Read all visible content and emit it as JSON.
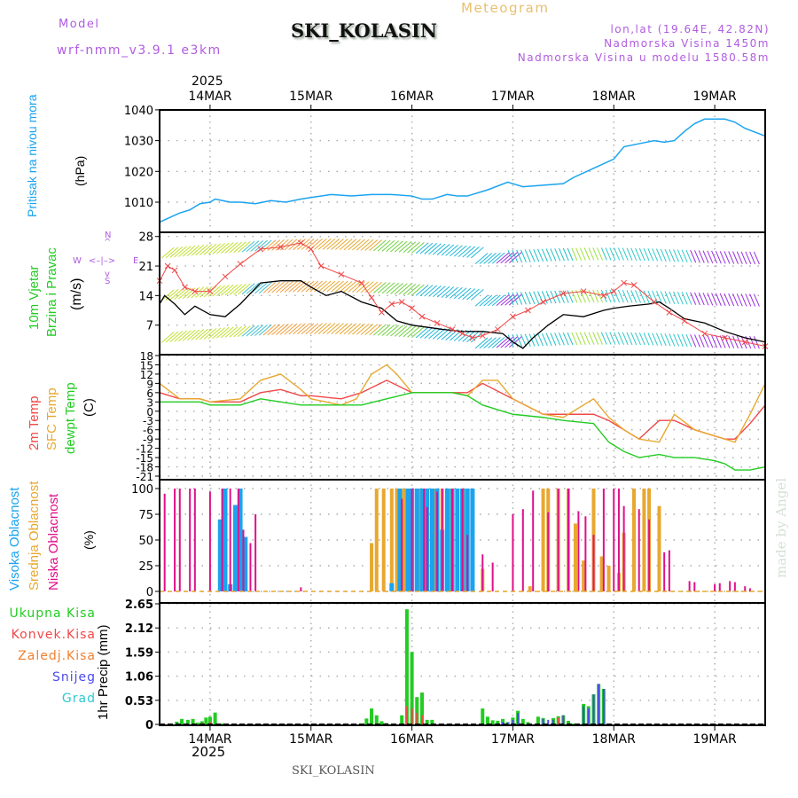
{
  "header": {
    "model_label": "Model",
    "model_value": "wrf-nmm_v3.9.1  e3km",
    "station_title": "SKI_KOLASIN",
    "chart_type": "Meteogram",
    "coords": "lon,lat (19.64E, 42.82N)",
    "elevation": "Nadmorska Visina 1450m",
    "model_elevation": "Nadmorska Visina u modelu 1580.58m",
    "year_top": "2025",
    "year_bottom": "2025",
    "colors": {
      "meta_text": "#b05ce0",
      "meteogram_label": "#e8c070"
    }
  },
  "footer": {
    "station": "SKI_KOLASIN",
    "watermark": "made by Angel"
  },
  "axis_days": [
    "14MAR",
    "15MAR",
    "16MAR",
    "17MAR",
    "18MAR",
    "19MAR"
  ],
  "panels": {
    "pressure": {
      "label": "Pritisak na nivou mora",
      "unit": "(hPa)",
      "color": "#1aa3ef"
    },
    "wind": {
      "label1": "10m Vjetar",
      "label2": "Brzina i Pravac",
      "unit": "(m/s)",
      "compass": {
        "n": "N",
        "s": "S",
        "e": "E",
        "w": "W"
      },
      "color": "#22cc22",
      "compass_color": "#b05ce0"
    },
    "temp": {
      "label_2m": "2m Temp",
      "label_sfc": "SFC Temp",
      "label_dew": "dewpt Temp",
      "unit": "(C)",
      "colors": {
        "t2m": "#f04848",
        "sfc": "#e8a830",
        "dew": "#22cc22"
      }
    },
    "cloud": {
      "label_high": "Visoka Oblacnost",
      "label_mid": "Srednja Oblacnost",
      "label_low": "Niska Oblacnost",
      "unit": "(%)",
      "colors": {
        "high": "#1aa3ef",
        "mid": "#e8a830",
        "low": "#e0108a"
      }
    },
    "precip": {
      "unit_label": "1hr Precip (mm)",
      "legend": [
        {
          "label": "Ukupna Kisa",
          "color": "#22cc22"
        },
        {
          "label": "Konvek.Kisa",
          "color": "#f04848"
        },
        {
          "label": "Zaledj.Kisa",
          "color": "#f08030"
        },
        {
          "label": "Snijeg",
          "color": "#4a4aee"
        },
        {
          "label": "Grad",
          "color": "#30c8d0"
        }
      ]
    }
  },
  "chart_data": [
    {
      "type": "line",
      "title": "Pritisak na nivou mora",
      "ylabel": "(hPa)",
      "ylim": [
        1005,
        1041
      ],
      "yticks": [
        1010,
        1020,
        1030,
        1040
      ],
      "x_unit": "days since 14MAR 00:00",
      "xlim": [
        -0.5,
        5.5
      ],
      "series": [
        {
          "name": "MSLP",
          "x": [
            -0.5,
            -0.4,
            -0.3,
            -0.2,
            -0.1,
            0,
            0.05,
            0.2,
            0.3,
            0.45,
            0.6,
            0.75,
            0.9,
            1.0,
            1.2,
            1.4,
            1.6,
            1.8,
            2.0,
            2.1,
            2.2,
            2.35,
            2.45,
            2.55,
            2.75,
            2.95,
            3.0,
            3.1,
            3.3,
            3.5,
            3.6,
            3.8,
            4.0,
            4.1,
            4.25,
            4.4,
            4.5,
            4.6,
            4.7,
            4.8,
            4.9,
            5.0,
            5.1,
            5.2,
            5.3,
            5.5
          ],
          "y": [
            1003.5,
            1005,
            1006.5,
            1007.5,
            1009.5,
            1010,
            1011,
            1010,
            1010,
            1009.5,
            1010.5,
            1010,
            1011,
            1011.5,
            1012.5,
            1012,
            1012.5,
            1012.5,
            1012,
            1011,
            1011,
            1012.5,
            1012,
            1012,
            1014,
            1016.5,
            1016,
            1015,
            1015.5,
            1016,
            1018,
            1021,
            1024,
            1028,
            1029,
            1030,
            1029.5,
            1030,
            1033,
            1035.5,
            1037,
            1037,
            1037,
            1036,
            1034,
            1031.5
          ]
        }
      ]
    },
    {
      "type": "line",
      "title": "10m Vjetar Brzina i Pravac",
      "ylabel": "(m/s)",
      "ylim": [
        0,
        28
      ],
      "yticks": [
        7,
        14,
        21,
        28
      ],
      "x_unit": "days since 14MAR 00:00",
      "series": [
        {
          "name": "wind speed",
          "color": "#000000",
          "x": [
            -0.5,
            -0.45,
            -0.35,
            -0.25,
            -0.15,
            0,
            0.15,
            0.3,
            0.5,
            0.7,
            0.9,
            1.0,
            1.15,
            1.3,
            1.5,
            1.7,
            1.85,
            2.0,
            2.15,
            2.3,
            2.5,
            2.7,
            2.9,
            3.0,
            3.1,
            3.2,
            3.35,
            3.5,
            3.7,
            3.9,
            4.0,
            4.15,
            4.35,
            4.45,
            4.55,
            4.7,
            4.9,
            5.1,
            5.3,
            5.5
          ],
          "y": [
            12,
            14,
            12,
            9.5,
            11.5,
            9.5,
            9,
            12,
            17,
            17.5,
            17.5,
            16,
            14,
            15,
            12.5,
            11,
            8,
            7,
            6.5,
            6,
            5.5,
            5.5,
            5,
            3,
            1.5,
            4,
            7,
            9.5,
            9,
            10.5,
            11,
            11.5,
            12,
            12.5,
            11,
            8.5,
            7.5,
            5.5,
            4,
            3
          ]
        },
        {
          "name": "wind gust",
          "color": "#f04848",
          "marker": "x",
          "x": [
            -0.5,
            -0.42,
            -0.35,
            -0.25,
            -0.15,
            0,
            0.15,
            0.3,
            0.5,
            0.7,
            0.9,
            1.0,
            1.1,
            1.3,
            1.5,
            1.6,
            1.7,
            1.8,
            1.9,
            2.0,
            2.1,
            2.25,
            2.4,
            2.5,
            2.6,
            2.7,
            2.85,
            3.0,
            3.15,
            3.3,
            3.5,
            3.7,
            3.9,
            4.0,
            4.1,
            4.2,
            4.4,
            4.55,
            4.7,
            4.9,
            5.1,
            5.3,
            5.5
          ],
          "y": [
            17.5,
            21,
            20,
            16,
            15,
            15,
            18.5,
            21.5,
            25,
            25.5,
            26.5,
            25,
            21,
            19,
            17,
            13.5,
            10,
            12,
            12.5,
            11,
            9,
            7.5,
            6,
            5,
            4,
            4.5,
            6,
            9,
            10.5,
            12.5,
            14.5,
            15,
            14,
            15,
            17,
            16.5,
            12.5,
            10,
            8,
            5,
            4,
            3,
            2
          ]
        }
      ],
      "wind_barbs_rows": 3,
      "wind_direction_note": "mostly SW/W flow through 16MAR, turning to N/NW from 17MAR"
    },
    {
      "type": "line",
      "title": "Temperature",
      "ylabel": "(C)",
      "ylim": [
        -21,
        18
      ],
      "yticks": [
        18,
        15,
        12,
        9,
        6,
        3,
        0,
        -3,
        -6,
        -9,
        -12,
        -15,
        -18,
        -21
      ],
      "x_unit": "days since 14MAR 00:00",
      "series": [
        {
          "name": "2m Temp",
          "color": "#f04848",
          "x": [
            -0.5,
            -0.3,
            -0.1,
            0,
            0.3,
            0.5,
            0.7,
            0.9,
            1.0,
            1.3,
            1.5,
            1.75,
            2.0,
            2.2,
            2.4,
            2.55,
            2.7,
            3.0,
            3.3,
            3.6,
            3.8,
            3.95,
            4.1,
            4.25,
            4.45,
            4.6,
            4.8,
            5.0,
            5.1,
            5.2,
            5.35,
            5.5
          ],
          "y": [
            6,
            4,
            4,
            3,
            3,
            6,
            7,
            5,
            5,
            4,
            6,
            10,
            6,
            6,
            6,
            6,
            9,
            4,
            -1,
            -1,
            -1,
            -3,
            -6,
            -9,
            -3,
            -3,
            -6,
            -8,
            -9,
            -9,
            -4,
            2
          ]
        },
        {
          "name": "SFC Temp",
          "color": "#e8a830",
          "x": [
            -0.5,
            -0.3,
            -0.1,
            0,
            0.3,
            0.5,
            0.7,
            0.9,
            1.0,
            1.3,
            1.45,
            1.6,
            1.75,
            1.85,
            2.0,
            2.2,
            2.4,
            2.55,
            2.7,
            2.85,
            3.0,
            3.3,
            3.5,
            3.8,
            3.95,
            4.1,
            4.25,
            4.45,
            4.6,
            4.8,
            5.0,
            5.1,
            5.2,
            5.35,
            5.5
          ],
          "y": [
            9,
            4,
            4,
            3,
            4,
            10,
            12,
            7,
            4,
            2,
            4,
            12,
            15,
            12,
            6,
            6,
            6,
            5,
            10,
            10,
            4,
            -1,
            -2,
            4,
            -2,
            -6,
            -9,
            -10,
            -1,
            -6,
            -8,
            -9,
            -10,
            -1,
            9
          ]
        },
        {
          "name": "dewpt Temp",
          "color": "#22cc22",
          "x": [
            -0.5,
            -0.3,
            -0.1,
            0,
            0.3,
            0.5,
            0.7,
            0.9,
            1.0,
            1.3,
            1.5,
            1.75,
            2.0,
            2.2,
            2.4,
            2.55,
            2.7,
            3.0,
            3.3,
            3.5,
            3.8,
            3.95,
            4.1,
            4.25,
            4.45,
            4.6,
            4.8,
            5.0,
            5.1,
            5.2,
            5.35,
            5.5
          ],
          "y": [
            3,
            3,
            3,
            2,
            2,
            4,
            3,
            2,
            2,
            2,
            2,
            4,
            6,
            6,
            6,
            5,
            2,
            -1,
            -2,
            -3,
            -4,
            -10,
            -13,
            -15,
            -14,
            -15,
            -15,
            -16,
            -17,
            -19,
            -19,
            -18
          ]
        }
      ]
    },
    {
      "type": "bar",
      "title": "Oblacnost",
      "ylabel": "(%)",
      "ylim": [
        0,
        100
      ],
      "yticks": [
        0,
        25,
        50,
        75,
        100
      ],
      "x_unit": "days since 14MAR 00:00",
      "series": [
        {
          "name": "Visoka Oblacnost",
          "color": "#1aa3ef",
          "x": [
            0.1,
            0.15,
            0.2,
            0.25,
            0.3,
            0.35,
            1.8,
            1.88,
            1.96,
            2.0,
            2.05,
            2.1,
            2.15,
            2.2,
            2.25,
            2.3,
            2.35,
            2.4,
            2.45,
            2.5,
            2.55,
            2.6
          ],
          "y": [
            70,
            100,
            7,
            84,
            100,
            53,
            8,
            100,
            100,
            100,
            100,
            100,
            100,
            100,
            100,
            60,
            100,
            100,
            100,
            100,
            100,
            100
          ]
        },
        {
          "name": "Srednja Oblacnost",
          "color": "#e8a830",
          "x": [
            1.6,
            1.65,
            1.72,
            1.8,
            1.85,
            1.92,
            2.0,
            2.08,
            2.15,
            2.22,
            2.3,
            2.37,
            2.45,
            2.52,
            2.6,
            2.7,
            3.17,
            3.3,
            3.35,
            3.45,
            3.55,
            3.62,
            3.7,
            3.8,
            3.88,
            3.95,
            4.05,
            4.1,
            4.2,
            4.3,
            4.35,
            4.45
          ],
          "y": [
            47,
            100,
            100,
            100,
            100,
            100,
            100,
            100,
            100,
            100,
            100,
            100,
            100,
            100,
            100,
            22,
            5,
            100,
            100,
            100,
            100,
            66,
            30,
            100,
            34,
            25,
            18,
            57,
            100,
            100,
            100,
            83
          ]
        },
        {
          "name": "Niska Oblacnost",
          "color": "#e0108a",
          "x": [
            -0.45,
            -0.35,
            -0.3,
            -0.2,
            -0.15,
            0,
            0.12,
            0.2,
            0.28,
            0.33,
            0.4,
            0.45,
            0.9,
            1.9,
            2.0,
            2.12,
            2.15,
            2.25,
            2.3,
            2.4,
            2.5,
            2.55,
            2.7,
            2.8,
            3.0,
            3.1,
            3.2,
            3.35,
            3.45,
            3.55,
            3.65,
            3.72,
            3.8,
            3.9,
            4.0,
            4.05,
            4.1,
            4.25,
            4.35,
            4.5,
            4.55,
            4.75,
            4.8,
            5.0,
            5.05,
            5.15,
            5.2,
            5.3,
            5.35
          ],
          "y": [
            95,
            100,
            100,
            100,
            100,
            97,
            100,
            100,
            100,
            60,
            47,
            75,
            4,
            90,
            100,
            100,
            82,
            97,
            100,
            100,
            100,
            55,
            36,
            28,
            75,
            80,
            98,
            77,
            100,
            100,
            78,
            73,
            55,
            100,
            100,
            100,
            83,
            80,
            70,
            38,
            40,
            10,
            9,
            7,
            8,
            10,
            9,
            5,
            3
          ]
        }
      ]
    },
    {
      "type": "bar",
      "title": "1hr Precip",
      "ylabel": "1hr Precip (mm)",
      "ylim": [
        0,
        2.65
      ],
      "yticks": [
        0,
        0.53,
        1.06,
        1.59,
        2.12,
        2.65
      ],
      "x_unit": "days since 14MAR 00:00",
      "series": [
        {
          "name": "Ukupna Kisa",
          "color": "#22cc22",
          "x": [
            -0.33,
            -0.28,
            -0.22,
            -0.17,
            -0.12,
            -0.08,
            -0.04,
            0,
            0.05,
            0.12,
            1.55,
            1.6,
            1.65,
            1.7,
            1.75,
            1.9,
            1.95,
            2.0,
            2.05,
            2.1,
            2.15,
            2.2,
            2.7,
            2.75,
            2.8,
            2.85,
            2.9,
            2.95,
            3.0,
            3.05,
            3.1,
            3.15,
            3.25,
            3.3,
            3.4,
            3.45,
            3.5,
            3.55,
            3.6,
            3.7,
            3.75,
            3.8,
            3.85,
            3.9
          ],
          "y": [
            0.06,
            0.12,
            0.1,
            0.12,
            0.04,
            0.07,
            0.15,
            0.17,
            0.26,
            0.02,
            0.13,
            0.35,
            0.2,
            0.07,
            0.03,
            0.2,
            2.53,
            1.59,
            0.6,
            0.7,
            0.1,
            0.1,
            0.35,
            0.17,
            0.09,
            0.08,
            0.12,
            0.05,
            0.15,
            0.3,
            0.12,
            0.05,
            0.17,
            0.14,
            0.14,
            0.18,
            0.2,
            0.08,
            0.02,
            0.45,
            0.4,
            0.66,
            0.89,
            0.78
          ]
        },
        {
          "name": "Konvek.Kisa",
          "color": "#f04848",
          "x": [
            -0.08,
            0.0,
            1.95,
            2.0,
            2.05,
            2.1,
            3.0,
            3.05,
            3.3,
            3.4,
            3.45,
            3.5
          ],
          "y": [
            0.03,
            0.05,
            0.4,
            0.35,
            0.25,
            0.2,
            0.08,
            0.2,
            0.04,
            0.1,
            0.15,
            0.18
          ]
        },
        {
          "name": "Snijeg",
          "color": "#4a4aee",
          "x": [
            2.9,
            2.95,
            3.0,
            3.05,
            3.3,
            3.35,
            3.4,
            3.5,
            3.7,
            3.75,
            3.8,
            3.85,
            3.9
          ],
          "y": [
            0.05,
            0.05,
            0.1,
            0.25,
            0.12,
            0.1,
            0.1,
            0.2,
            0.4,
            0.35,
            0.66,
            0.89,
            0.78
          ]
        }
      ]
    }
  ]
}
